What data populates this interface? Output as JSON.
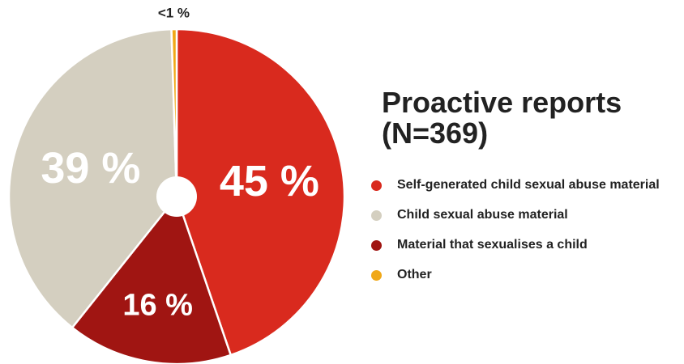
{
  "chart_data": {
    "type": "pie",
    "title_lines": [
      "Proactive reports",
      "(N=369)"
    ],
    "slices": [
      {
        "name": "Self-generated child sexual abuse material",
        "value": 45,
        "label": "45 %",
        "color": "#d92a1e"
      },
      {
        "name": "Material that sexualises a child",
        "value": 16,
        "label": "16 %",
        "color": "#a01512"
      },
      {
        "name": "Child sexual abuse material",
        "value": 39,
        "label": "39 %",
        "color": "#d4cfc0"
      },
      {
        "name": "Other",
        "value": 0.5,
        "label": "<1 %",
        "color": "#f0a818"
      }
    ],
    "legend": [
      {
        "label": "Self-generated child sexual abuse material",
        "color": "#d92a1e"
      },
      {
        "label": "Child sexual abuse material",
        "color": "#d4cfc0"
      },
      {
        "label": "Material that sexualises a child",
        "color": "#a01512"
      },
      {
        "label": "Other",
        "color": "#f0a818"
      }
    ],
    "legend_position": "right",
    "donut_hole": true
  }
}
